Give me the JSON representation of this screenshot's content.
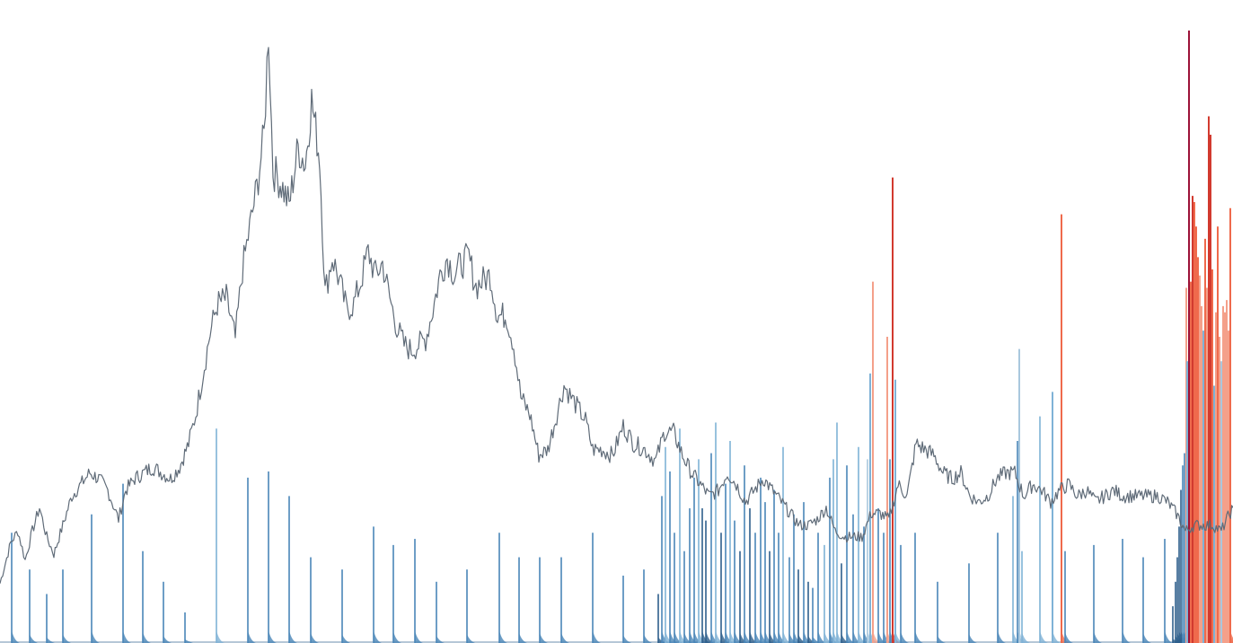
{
  "chart_data": {
    "type": "bar",
    "title": "",
    "xlabel": "",
    "ylabel": "",
    "grid": false,
    "legend": "none",
    "x_range": [
      0,
      1373
    ],
    "bar_ylim": [
      0,
      100
    ],
    "line_ylim": [
      0,
      100
    ],
    "colors": {
      "line": "#5f6b78",
      "blue_dark": "#2e5f8c",
      "blue_mid": "#4a86b8",
      "blue_light": "#7fb2d6",
      "blue_pale": "#a9c8de",
      "red_light": "#f4a08a",
      "red_mid": "#ef6a4c",
      "red_dark": "#d23a2f",
      "crimson": "#9c1238"
    },
    "line_series": {
      "name": "",
      "points": [
        [
          0,
          5
        ],
        [
          12,
          12
        ],
        [
          20,
          14
        ],
        [
          28,
          9
        ],
        [
          36,
          14
        ],
        [
          44,
          18
        ],
        [
          52,
          13
        ],
        [
          60,
          10
        ],
        [
          70,
          15
        ],
        [
          80,
          20
        ],
        [
          90,
          22
        ],
        [
          100,
          24
        ],
        [
          110,
          23
        ],
        [
          120,
          21
        ],
        [
          132,
          16
        ],
        [
          140,
          21
        ],
        [
          150,
          23
        ],
        [
          160,
          24
        ],
        [
          170,
          25
        ],
        [
          180,
          24
        ],
        [
          190,
          23
        ],
        [
          200,
          25
        ],
        [
          210,
          29
        ],
        [
          218,
          34
        ],
        [
          226,
          41
        ],
        [
          234,
          48
        ],
        [
          242,
          53
        ],
        [
          252,
          54
        ],
        [
          262,
          47
        ],
        [
          270,
          59
        ],
        [
          278,
          66
        ],
        [
          286,
          73
        ],
        [
          294,
          82
        ],
        [
          299,
          100
        ],
        [
          304,
          76
        ],
        [
          312,
          74
        ],
        [
          322,
          70
        ],
        [
          332,
          80
        ],
        [
          340,
          77
        ],
        [
          347,
          88
        ],
        [
          356,
          78
        ],
        [
          362,
          55
        ],
        [
          370,
          61
        ],
        [
          378,
          57
        ],
        [
          386,
          52
        ],
        [
          394,
          53
        ],
        [
          402,
          57
        ],
        [
          410,
          62
        ],
        [
          418,
          58
        ],
        [
          426,
          60
        ],
        [
          434,
          54
        ],
        [
          442,
          49
        ],
        [
          450,
          46
        ],
        [
          458,
          45
        ],
        [
          466,
          46
        ],
        [
          474,
          47
        ],
        [
          482,
          52
        ],
        [
          490,
          58
        ],
        [
          498,
          61
        ],
        [
          506,
          58
        ],
        [
          514,
          60
        ],
        [
          522,
          61
        ],
        [
          530,
          56
        ],
        [
          538,
          57
        ],
        [
          546,
          58
        ],
        [
          554,
          51
        ],
        [
          564,
          51
        ],
        [
          572,
          46
        ],
        [
          580,
          37
        ],
        [
          590,
          34
        ],
        [
          600,
          27
        ],
        [
          610,
          28
        ],
        [
          620,
          34
        ],
        [
          628,
          39
        ],
        [
          636,
          37
        ],
        [
          644,
          35
        ],
        [
          652,
          33
        ],
        [
          660,
          28
        ],
        [
          670,
          28
        ],
        [
          682,
          27
        ],
        [
          694,
          32
        ],
        [
          706,
          29
        ],
        [
          718,
          28
        ],
        [
          730,
          26
        ],
        [
          740,
          31
        ],
        [
          750,
          31
        ],
        [
          760,
          27
        ],
        [
          770,
          24
        ],
        [
          780,
          22
        ],
        [
          790,
          20
        ],
        [
          800,
          21
        ],
        [
          810,
          24
        ],
        [
          820,
          22
        ],
        [
          830,
          19
        ],
        [
          840,
          21
        ],
        [
          850,
          23
        ],
        [
          860,
          21
        ],
        [
          870,
          19
        ],
        [
          880,
          17
        ],
        [
          890,
          15
        ],
        [
          900,
          15
        ],
        [
          910,
          16
        ],
        [
          920,
          18
        ],
        [
          930,
          14
        ],
        [
          940,
          13
        ],
        [
          950,
          13
        ],
        [
          960,
          13
        ],
        [
          970,
          17
        ],
        [
          980,
          17
        ],
        [
          990,
          16
        ],
        [
          1000,
          22
        ],
        [
          1010,
          20
        ],
        [
          1020,
          29
        ],
        [
          1030,
          28
        ],
        [
          1040,
          27
        ],
        [
          1050,
          24
        ],
        [
          1060,
          23
        ],
        [
          1070,
          24
        ],
        [
          1080,
          20
        ],
        [
          1090,
          19
        ],
        [
          1100,
          20
        ],
        [
          1110,
          23
        ],
        [
          1120,
          24
        ],
        [
          1130,
          24
        ],
        [
          1140,
          20
        ],
        [
          1150,
          22
        ],
        [
          1160,
          21
        ],
        [
          1170,
          19
        ],
        [
          1180,
          21
        ],
        [
          1190,
          22
        ],
        [
          1200,
          20
        ],
        [
          1210,
          21
        ],
        [
          1220,
          19
        ],
        [
          1230,
          20
        ],
        [
          1240,
          21
        ],
        [
          1250,
          20
        ],
        [
          1260,
          20
        ],
        [
          1270,
          20
        ],
        [
          1280,
          20
        ],
        [
          1290,
          20
        ],
        [
          1300,
          19
        ],
        [
          1310,
          17
        ],
        [
          1320,
          14
        ],
        [
          1330,
          15
        ],
        [
          1340,
          15
        ],
        [
          1350,
          15
        ],
        [
          1360,
          14
        ],
        [
          1366,
          16
        ],
        [
          1373,
          18
        ]
      ]
    },
    "spikes": [
      {
        "x": 13,
        "value": 18,
        "tier": "blue_mid"
      },
      {
        "x": 33,
        "value": 12,
        "tier": "blue_mid"
      },
      {
        "x": 52,
        "value": 8,
        "tier": "blue_mid"
      },
      {
        "x": 70,
        "value": 12,
        "tier": "blue_mid"
      },
      {
        "x": 102,
        "value": 21,
        "tier": "blue_mid"
      },
      {
        "x": 137,
        "value": 26,
        "tier": "blue_mid"
      },
      {
        "x": 159,
        "value": 15,
        "tier": "blue_mid"
      },
      {
        "x": 182,
        "value": 10,
        "tier": "blue_mid"
      },
      {
        "x": 206,
        "value": 5,
        "tier": "blue_mid"
      },
      {
        "x": 241,
        "value": 35,
        "tier": "blue_light"
      },
      {
        "x": 276,
        "value": 27,
        "tier": "blue_mid"
      },
      {
        "x": 299,
        "value": 28,
        "tier": "blue_mid"
      },
      {
        "x": 322,
        "value": 24,
        "tier": "blue_mid"
      },
      {
        "x": 346,
        "value": 14,
        "tier": "blue_mid"
      },
      {
        "x": 381,
        "value": 12,
        "tier": "blue_mid"
      },
      {
        "x": 416,
        "value": 19,
        "tier": "blue_mid"
      },
      {
        "x": 438,
        "value": 16,
        "tier": "blue_mid"
      },
      {
        "x": 462,
        "value": 17,
        "tier": "blue_mid"
      },
      {
        "x": 486,
        "value": 10,
        "tier": "blue_mid"
      },
      {
        "x": 520,
        "value": 12,
        "tier": "blue_mid"
      },
      {
        "x": 556,
        "value": 18,
        "tier": "blue_mid"
      },
      {
        "x": 578,
        "value": 14,
        "tier": "blue_mid"
      },
      {
        "x": 601,
        "value": 14,
        "tier": "blue_mid"
      },
      {
        "x": 625,
        "value": 14,
        "tier": "blue_mid"
      },
      {
        "x": 660,
        "value": 18,
        "tier": "blue_mid"
      },
      {
        "x": 694,
        "value": 11,
        "tier": "blue_mid"
      },
      {
        "x": 717,
        "value": 12,
        "tier": "blue_mid"
      },
      {
        "x": 733,
        "value": 8,
        "tier": "blue_dark"
      },
      {
        "x": 737,
        "value": 24,
        "tier": "blue_mid"
      },
      {
        "x": 741,
        "value": 32,
        "tier": "blue_light"
      },
      {
        "x": 746,
        "value": 28,
        "tier": "blue_mid"
      },
      {
        "x": 751,
        "value": 18,
        "tier": "blue_mid"
      },
      {
        "x": 757,
        "value": 35,
        "tier": "blue_light"
      },
      {
        "x": 762,
        "value": 15,
        "tier": "blue_mid"
      },
      {
        "x": 768,
        "value": 22,
        "tier": "blue_mid"
      },
      {
        "x": 773,
        "value": 27,
        "tier": "blue_mid"
      },
      {
        "x": 778,
        "value": 30,
        "tier": "blue_light"
      },
      {
        "x": 782,
        "value": 22,
        "tier": "blue_dark"
      },
      {
        "x": 786,
        "value": 20,
        "tier": "blue_dark"
      },
      {
        "x": 792,
        "value": 31,
        "tier": "blue_mid"
      },
      {
        "x": 797,
        "value": 36,
        "tier": "blue_light"
      },
      {
        "x": 803,
        "value": 18,
        "tier": "blue_dark"
      },
      {
        "x": 808,
        "value": 26,
        "tier": "blue_mid"
      },
      {
        "x": 813,
        "value": 33,
        "tier": "blue_light"
      },
      {
        "x": 818,
        "value": 20,
        "tier": "blue_mid"
      },
      {
        "x": 824,
        "value": 15,
        "tier": "blue_dark"
      },
      {
        "x": 829,
        "value": 29,
        "tier": "blue_mid"
      },
      {
        "x": 835,
        "value": 22,
        "tier": "blue_dark"
      },
      {
        "x": 841,
        "value": 18,
        "tier": "blue_mid"
      },
      {
        "x": 847,
        "value": 27,
        "tier": "blue_mid"
      },
      {
        "x": 852,
        "value": 23,
        "tier": "blue_mid"
      },
      {
        "x": 857,
        "value": 15,
        "tier": "blue_dark"
      },
      {
        "x": 862,
        "value": 25,
        "tier": "blue_mid"
      },
      {
        "x": 867,
        "value": 18,
        "tier": "blue_mid"
      },
      {
        "x": 872,
        "value": 32,
        "tier": "blue_light"
      },
      {
        "x": 879,
        "value": 14,
        "tier": "blue_mid"
      },
      {
        "x": 884,
        "value": 21,
        "tier": "blue_mid"
      },
      {
        "x": 889,
        "value": 12,
        "tier": "blue_dark"
      },
      {
        "x": 895,
        "value": 23,
        "tier": "blue_mid"
      },
      {
        "x": 900,
        "value": 10,
        "tier": "blue_dark"
      },
      {
        "x": 905,
        "value": 9,
        "tier": "blue_mid"
      },
      {
        "x": 911,
        "value": 18,
        "tier": "blue_mid"
      },
      {
        "x": 918,
        "value": 16,
        "tier": "blue_light"
      },
      {
        "x": 924,
        "value": 27,
        "tier": "blue_mid"
      },
      {
        "x": 928,
        "value": 30,
        "tier": "blue_light"
      },
      {
        "x": 932,
        "value": 36,
        "tier": "blue_light"
      },
      {
        "x": 937,
        "value": 13,
        "tier": "blue_dark"
      },
      {
        "x": 943,
        "value": 29,
        "tier": "blue_mid"
      },
      {
        "x": 950,
        "value": 21,
        "tier": "blue_mid"
      },
      {
        "x": 956,
        "value": 32,
        "tier": "blue_light"
      },
      {
        "x": 962,
        "value": 19,
        "tier": "blue_mid"
      },
      {
        "x": 966,
        "value": 30,
        "tier": "blue_pale"
      },
      {
        "x": 969,
        "value": 44,
        "tier": "blue_light"
      },
      {
        "x": 972,
        "value": 59,
        "tier": "red_light"
      },
      {
        "x": 978,
        "value": 22,
        "tier": "blue_mid"
      },
      {
        "x": 984,
        "value": 18,
        "tier": "blue_mid"
      },
      {
        "x": 988,
        "value": 50,
        "tier": "red_light"
      },
      {
        "x": 991,
        "value": 30,
        "tier": "blue_mid"
      },
      {
        "x": 994,
        "value": 76,
        "tier": "red_dark"
      },
      {
        "x": 997,
        "value": 43,
        "tier": "blue_light"
      },
      {
        "x": 1003,
        "value": 16,
        "tier": "blue_mid"
      },
      {
        "x": 1019,
        "value": 18,
        "tier": "blue_mid"
      },
      {
        "x": 1044,
        "value": 10,
        "tier": "blue_mid"
      },
      {
        "x": 1079,
        "value": 13,
        "tier": "blue_mid"
      },
      {
        "x": 1111,
        "value": 18,
        "tier": "blue_mid"
      },
      {
        "x": 1128,
        "value": 24,
        "tier": "blue_light"
      },
      {
        "x": 1133,
        "value": 33,
        "tier": "blue_mid"
      },
      {
        "x": 1135,
        "value": 48,
        "tier": "blue_pale"
      },
      {
        "x": 1138,
        "value": 15,
        "tier": "blue_light"
      },
      {
        "x": 1158,
        "value": 37,
        "tier": "blue_light"
      },
      {
        "x": 1172,
        "value": 41,
        "tier": "blue_light"
      },
      {
        "x": 1182,
        "value": 70,
        "tier": "red_mid"
      },
      {
        "x": 1186,
        "value": 15,
        "tier": "blue_mid"
      },
      {
        "x": 1218,
        "value": 16,
        "tier": "blue_mid"
      },
      {
        "x": 1250,
        "value": 17,
        "tier": "blue_mid"
      },
      {
        "x": 1273,
        "value": 14,
        "tier": "blue_mid"
      },
      {
        "x": 1297,
        "value": 17,
        "tier": "blue_mid"
      },
      {
        "x": 1306,
        "value": 6,
        "tier": "blue_dark"
      },
      {
        "x": 1309,
        "value": 10,
        "tier": "blue_dark"
      },
      {
        "x": 1311,
        "value": 14,
        "tier": "blue_dark"
      },
      {
        "x": 1313,
        "value": 19,
        "tier": "blue_dark"
      },
      {
        "x": 1315,
        "value": 25,
        "tier": "blue_dark"
      },
      {
        "x": 1317,
        "value": 29,
        "tier": "blue_mid"
      },
      {
        "x": 1319,
        "value": 31,
        "tier": "blue_mid"
      },
      {
        "x": 1321,
        "value": 58,
        "tier": "red_light"
      },
      {
        "x": 1322,
        "value": 46,
        "tier": "blue_light"
      },
      {
        "x": 1324,
        "value": 100,
        "tier": "crimson"
      },
      {
        "x": 1326,
        "value": 59,
        "tier": "red_mid"
      },
      {
        "x": 1328,
        "value": 73,
        "tier": "red_dark"
      },
      {
        "x": 1330,
        "value": 72,
        "tier": "red_mid"
      },
      {
        "x": 1332,
        "value": 68,
        "tier": "red_mid"
      },
      {
        "x": 1334,
        "value": 63,
        "tier": "red_mid"
      },
      {
        "x": 1336,
        "value": 60,
        "tier": "red_light"
      },
      {
        "x": 1338,
        "value": 55,
        "tier": "red_light"
      },
      {
        "x": 1340,
        "value": 51,
        "tier": "blue_light"
      },
      {
        "x": 1342,
        "value": 66,
        "tier": "red_mid"
      },
      {
        "x": 1344,
        "value": 58,
        "tier": "red_light"
      },
      {
        "x": 1346,
        "value": 86,
        "tier": "red_dark"
      },
      {
        "x": 1348,
        "value": 83,
        "tier": "red_dark"
      },
      {
        "x": 1350,
        "value": 61,
        "tier": "red_mid"
      },
      {
        "x": 1352,
        "value": 42,
        "tier": "blue_light"
      },
      {
        "x": 1354,
        "value": 54,
        "tier": "red_light"
      },
      {
        "x": 1356,
        "value": 68,
        "tier": "red_mid"
      },
      {
        "x": 1358,
        "value": 50,
        "tier": "red_light"
      },
      {
        "x": 1360,
        "value": 46,
        "tier": "blue_pale"
      },
      {
        "x": 1362,
        "value": 55,
        "tier": "red_light"
      },
      {
        "x": 1364,
        "value": 54,
        "tier": "red_light"
      },
      {
        "x": 1366,
        "value": 56,
        "tier": "red_light"
      },
      {
        "x": 1368,
        "value": 51,
        "tier": "red_light"
      },
      {
        "x": 1370,
        "value": 71,
        "tier": "red_mid"
      }
    ]
  }
}
